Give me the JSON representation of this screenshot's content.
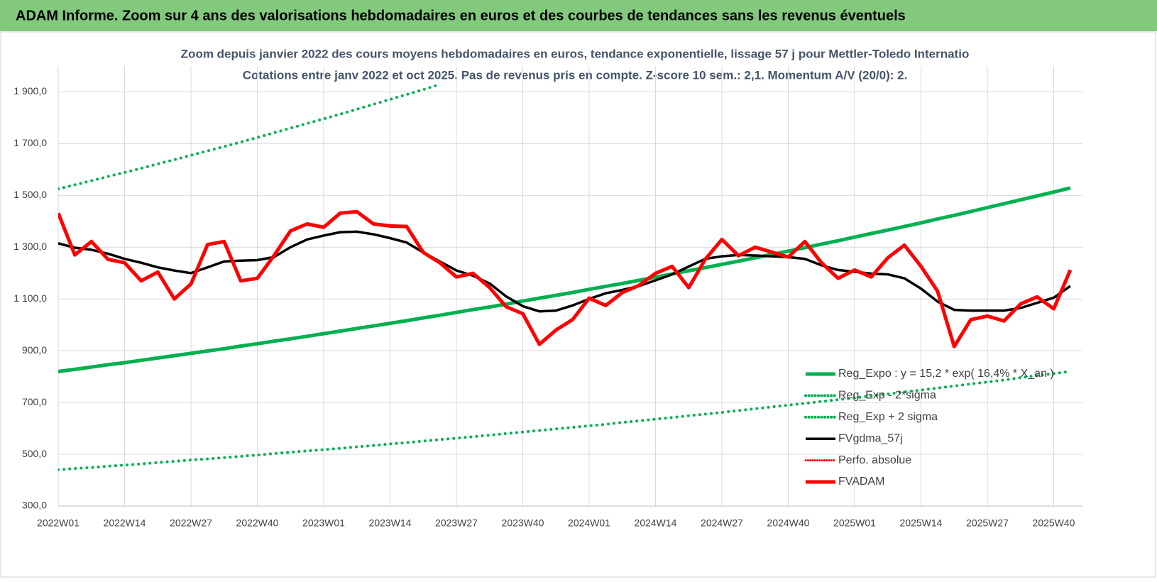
{
  "chart_data": {
    "type": "line",
    "header": "ADAM Informe. Zoom sur 4 ans des valorisations hebdomadaires en euros et des courbes de tendances sans les revenus éventuels",
    "title": "Zoom depuis janvier 2022 des cours moyens hebdomadaires en euros, tendance exponentielle, lissage 57 j pour Mettler-Toledo Internatio",
    "subtitle": "Cotations entre janv 2022 et oct 2025. Pas de revenus pris en compte. Z-score 10 sem.: 2,1. Momentum A/V (20/0): 2.",
    "categories": [
      "2022W01",
      null,
      null,
      null,
      "2022W14",
      null,
      null,
      null,
      "2022W27",
      null,
      null,
      null,
      "2022W40",
      null,
      null,
      null,
      "2023W01",
      null,
      null,
      null,
      "2023W14",
      null,
      null,
      null,
      "2023W27",
      null,
      null,
      null,
      "2023W40",
      null,
      null,
      null,
      "2024W01",
      null,
      null,
      null,
      "2024W14",
      null,
      null,
      null,
      "2024W27",
      null,
      null,
      null,
      "2024W40",
      null,
      null,
      null,
      "2025W01",
      null,
      null,
      null,
      "2025W14",
      null,
      null,
      null,
      "2025W27",
      null,
      null,
      null,
      "2025W40",
      null
    ],
    "ylim": [
      300,
      2000
    ],
    "yticks": [
      {
        "value": 300,
        "label": "300,0"
      },
      {
        "value": 500,
        "label": "500,0"
      },
      {
        "value": 700,
        "label": "700,0"
      },
      {
        "value": 900,
        "label": "900,0"
      },
      {
        "value": 1100,
        "label": "1 100,0"
      },
      {
        "value": 1300,
        "label": "1 300,0"
      },
      {
        "value": 1500,
        "label": "1 500,0"
      },
      {
        "value": 1700,
        "label": "1 700,0"
      },
      {
        "value": 1900,
        "label": "1 900,0"
      }
    ],
    "grid": true,
    "legend": "lower right",
    "series": [
      {
        "name": "Reg_Expo : y = 15,2 * exp( 16,4% * X_an )",
        "color": "#00b050",
        "style": "solid",
        "width": 5,
        "values": [
          820,
          828,
          837,
          846,
          854,
          863,
          872,
          881,
          890,
          899,
          908,
          918,
          927,
          937,
          946,
          956,
          966,
          976,
          986,
          996,
          1006,
          1016,
          1027,
          1037,
          1048,
          1059,
          1069,
          1080,
          1092,
          1103,
          1114,
          1125,
          1137,
          1149,
          1160,
          1172,
          1184,
          1197,
          1209,
          1221,
          1234,
          1246,
          1259,
          1272,
          1285,
          1298,
          1312,
          1325,
          1339,
          1353,
          1366,
          1380,
          1394,
          1409,
          1423,
          1438,
          1453,
          1468,
          1483,
          1498,
          1513,
          1529
        ]
      },
      {
        "name": "Reg_Exp - 2*sigma",
        "color": "#00b050",
        "style": "dotted",
        "width": 4,
        "values": [
          440,
          445,
          449,
          454,
          458,
          463,
          468,
          473,
          478,
          482,
          487,
          492,
          497,
          503,
          508,
          513,
          518,
          523,
          529,
          534,
          540,
          545,
          551,
          557,
          562,
          568,
          574,
          580,
          586,
          592,
          598,
          604,
          610,
          616,
          623,
          629,
          636,
          642,
          649,
          655,
          662,
          669,
          676,
          683,
          690,
          697,
          704,
          711,
          718,
          726,
          733,
          741,
          748,
          756,
          764,
          772,
          779,
          787,
          796,
          804,
          812,
          820
        ]
      },
      {
        "name": "Reg_Exp + 2 sigma",
        "color": "#00b050",
        "style": "dotted",
        "width": 4,
        "values": [
          1525,
          1541,
          1557,
          1573,
          1589,
          1605,
          1622,
          1638,
          1655,
          1672,
          1689,
          1706,
          1724,
          1742,
          1760,
          1778,
          1796,
          1814,
          1833,
          1852,
          1871,
          1890,
          1909,
          1929,
          null,
          null,
          null,
          null,
          null,
          null,
          null,
          null,
          null,
          null,
          null,
          null,
          null,
          null,
          null,
          null,
          null,
          null,
          null,
          null,
          null,
          null,
          null,
          null,
          null,
          null,
          null,
          null,
          null,
          null,
          null,
          null,
          null,
          null,
          null,
          null,
          null,
          null
        ]
      },
      {
        "name": "FVgdma_57j",
        "color": "#000000",
        "style": "solid",
        "width": 3.5,
        "values": [
          1315,
          1298,
          1290,
          1275,
          1255,
          1240,
          1222,
          1210,
          1200,
          1222,
          1245,
          1248,
          1250,
          1262,
          1300,
          1330,
          1345,
          1358,
          1360,
          1350,
          1335,
          1318,
          1280,
          1245,
          1210,
          1190,
          1160,
          1110,
          1072,
          1052,
          1055,
          1075,
          1100,
          1122,
          1135,
          1150,
          1172,
          1195,
          1225,
          1255,
          1265,
          1270,
          1268,
          1265,
          1262,
          1255,
          1230,
          1212,
          1205,
          1198,
          1195,
          1180,
          1140,
          1090,
          1058,
          1055,
          1055,
          1055,
          1065,
          1085,
          1105,
          1150
        ]
      },
      {
        "name": "Perfo. absolue",
        "color": "#ff0000",
        "style": "dotted",
        "width": 3
      },
      {
        "name": "FVADAM",
        "color": "#ff0000",
        "style": "solid",
        "width": 5,
        "values": [
          1432,
          1270,
          1322,
          1253,
          1240,
          1170,
          1204,
          1100,
          1158,
          1310,
          1322,
          1170,
          1180,
          1267,
          1363,
          1390,
          1377,
          1432,
          1437,
          1390,
          1382,
          1380,
          1280,
          1240,
          1185,
          1199,
          1144,
          1070,
          1043,
          925,
          980,
          1020,
          1103,
          1075,
          1125,
          1152,
          1199,
          1226,
          1144,
          1253,
          1330,
          1267,
          1300,
          1281,
          1262,
          1322,
          1240,
          1180,
          1212,
          1185,
          1259,
          1308,
          1226,
          1130,
          916,
          1020,
          1034,
          1015,
          1081,
          1108,
          1062,
          1212
        ]
      }
    ]
  }
}
